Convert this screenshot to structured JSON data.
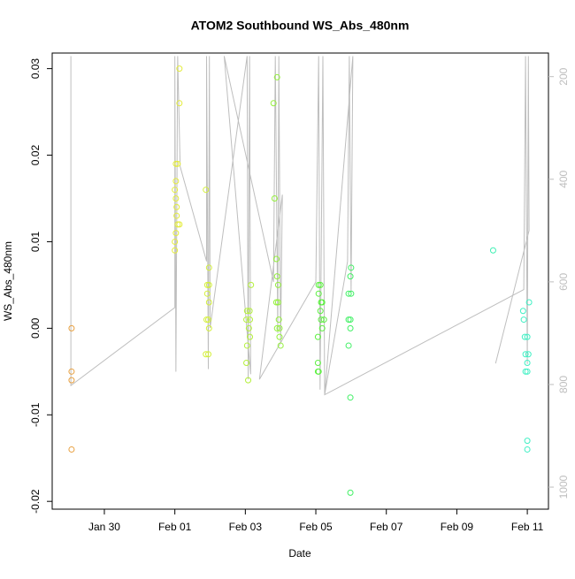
{
  "chart_data": {
    "type": "scatter",
    "title": "ATOM2 Southbound WS_Abs_480nm",
    "xlabel": "Date",
    "ylabel": "WS_Abs_480nm",
    "xlim": [
      -1.48,
      12.6
    ],
    "xticks": [
      {
        "value": 0,
        "label": "Jan 30"
      },
      {
        "value": 2,
        "label": "Feb 01"
      },
      {
        "value": 4,
        "label": "Feb 03"
      },
      {
        "value": 6,
        "label": "Feb 05"
      },
      {
        "value": 8,
        "label": "Feb 07"
      },
      {
        "value": 10,
        "label": "Feb 09"
      },
      {
        "value": 12,
        "label": "Feb 11"
      }
    ],
    "ylim": [
      -0.0209,
      0.0318
    ],
    "yticks": [
      -0.02,
      -0.01,
      {
        "value": 0,
        "label": "0.00"
      },
      0.01,
      0.02,
      0.03
    ],
    "y2lim": [
      154,
      1043
    ],
    "y2_reversed": true,
    "y2ticks": [
      200,
      400,
      600,
      800,
      1000
    ],
    "y2color": "#bebebe",
    "series": [
      {
        "color": "#e8a040",
        "x": [
          -0.93,
          -0.93,
          -0.93,
          -0.93
        ],
        "values": [
          0.0,
          -0.005,
          -0.006,
          -0.014
        ]
      },
      {
        "color": "#e4ec3c",
        "x": [
          2.13,
          2.13,
          2.03,
          2.08,
          2.0,
          2.03,
          2.03,
          2.05,
          2.05,
          2.13,
          2.08,
          2.03,
          2.0,
          2.0
        ],
        "values": [
          0.03,
          0.026,
          0.019,
          0.019,
          0.016,
          0.017,
          0.015,
          0.014,
          0.013,
          0.012,
          0.012,
          0.011,
          0.01,
          0.009
        ]
      },
      {
        "color": "#d4f03c",
        "x": [
          2.88,
          2.97,
          2.92,
          2.97,
          2.92,
          2.97,
          2.9,
          2.95,
          2.97,
          2.88,
          2.95
        ],
        "values": [
          0.016,
          0.007,
          0.005,
          0.005,
          0.004,
          0.003,
          0.001,
          0.001,
          0.0,
          -0.003,
          -0.003
        ]
      },
      {
        "color": "#b4f03c",
        "x": [
          4.16,
          4.05,
          4.12,
          4.03,
          4.13,
          4.1,
          4.13,
          4.05,
          4.03,
          4.08
        ],
        "values": [
          0.005,
          0.002,
          0.002,
          0.001,
          0.001,
          0.0,
          -0.001,
          -0.002,
          -0.004,
          -0.006
        ]
      },
      {
        "color": "#94f03c",
        "x": [
          4.9,
          4.8,
          4.83,
          4.88,
          4.9,
          4.93,
          4.88,
          4.93,
          4.95,
          4.9,
          4.97,
          4.97,
          5.0
        ],
        "values": [
          0.029,
          0.026,
          0.015,
          0.008,
          0.006,
          0.005,
          0.003,
          0.003,
          0.001,
          0.0,
          0.0,
          -0.001,
          -0.002
        ]
      },
      {
        "color": "#5cf040",
        "x": [
          6.08,
          6.13,
          6.08,
          6.15,
          6.18,
          6.13,
          6.15,
          6.23,
          6.18,
          6.06,
          6.06,
          6.06,
          6.08
        ],
        "values": [
          0.005,
          0.005,
          0.004,
          0.003,
          0.003,
          0.002,
          0.001,
          0.001,
          0.0,
          -0.001,
          -0.004,
          -0.005,
          -0.005
        ]
      },
      {
        "color": "#40f064",
        "x": [
          7.0,
          6.98,
          6.93,
          7.0,
          6.93,
          6.98,
          6.98,
          6.93,
          6.98,
          6.98
        ],
        "values": [
          0.007,
          0.006,
          0.004,
          0.004,
          0.001,
          0.001,
          0.0,
          -0.002,
          -0.008,
          -0.019
        ]
      },
      {
        "color": "#40f0b4",
        "x": [
          11.03
        ],
        "values": [
          0.009
        ]
      },
      {
        "color": "#40f0c4",
        "x": [
          12.05,
          11.88,
          11.9,
          11.93,
          12.0,
          11.95,
          12.03,
          12.0,
          11.95,
          12.0,
          12.0,
          12.0
        ],
        "values": [
          0.003,
          0.002,
          0.001,
          -0.001,
          -0.001,
          -0.003,
          -0.003,
          -0.004,
          -0.005,
          -0.005,
          -0.013,
          -0.014
        ]
      },
      {
        "type": "line",
        "axis": "y2",
        "color": "#bebebe",
        "x": [
          -0.95,
          -0.95,
          2.0,
          2.0,
          2.03,
          2.08,
          2.15,
          2.9,
          2.9,
          2.95,
          2.98,
          3.0,
          4.05,
          4.08,
          4.12,
          4.15,
          3.4,
          4.8,
          4.85,
          4.92,
          4.95,
          5.0,
          5.05,
          4.4,
          6.0,
          6.08,
          6.12,
          6.2,
          6.25,
          6.9,
          6.95,
          7.0,
          7.05,
          6.25,
          11.9,
          11.95,
          12.0,
          12.03,
          12.05,
          11.1
        ],
        "values": [
          160,
          802,
          650,
          160,
          775,
          160,
          375,
          560,
          160,
          770,
          160,
          690,
          160,
          790,
          160,
          780,
          160,
          600,
          160,
          700,
          160,
          720,
          430,
          790,
          600,
          160,
          810,
          160,
          820,
          560,
          160,
          620,
          160,
          820,
          615,
          160,
          760,
          160,
          500,
          759
        ]
      }
    ]
  }
}
